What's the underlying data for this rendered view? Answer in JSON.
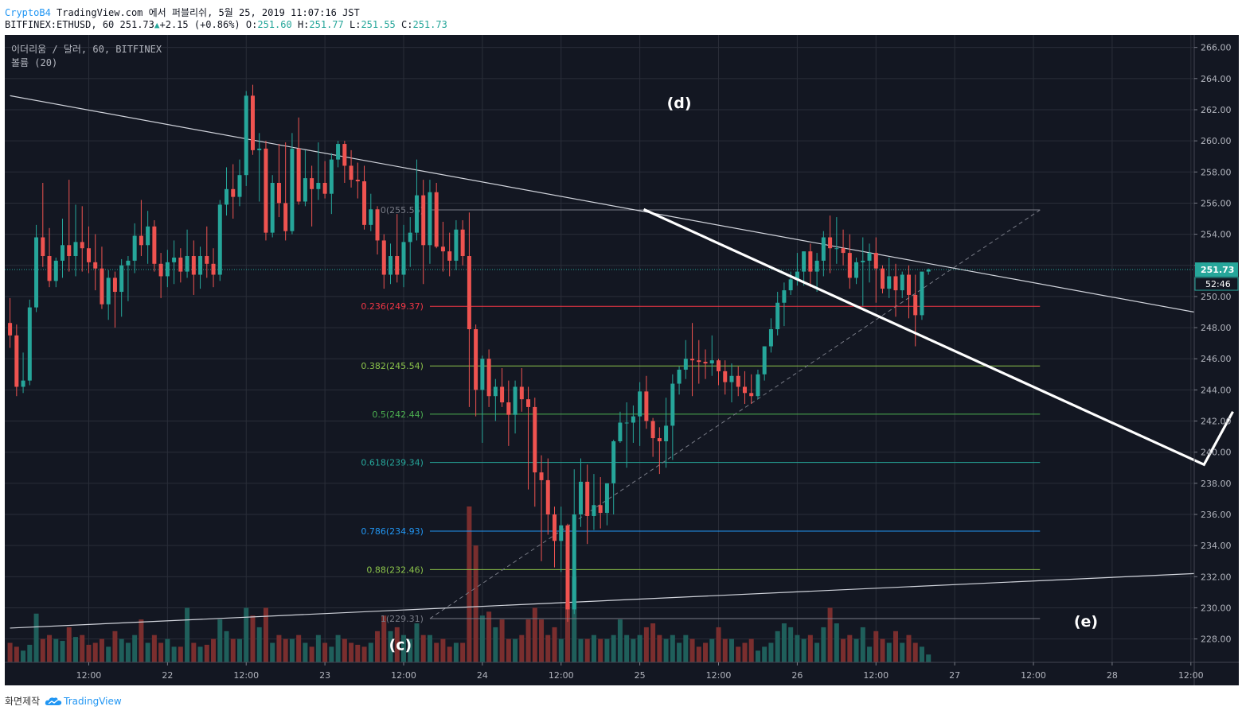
{
  "header": {
    "brand": "CryptoB4",
    "published": "TradingView.com 에서 퍼블리쉬, 5월 25, 2019 11:07:16 JST",
    "symbol": "BITFINEX:ETHUSD, 60",
    "last": "251.73",
    "change": "+2.15 (+0.86%)",
    "o_label": "O:",
    "o": "251.60",
    "h_label": "H:",
    "h": "251.77",
    "l_label": "L:",
    "l": "251.55",
    "c_label": "C:",
    "c": "251.73"
  },
  "legend": {
    "line1": "이더리움 / 달러, 60, BITFINEX",
    "line2": "볼륨 (20)"
  },
  "footer": {
    "made_with": "화면제작",
    "tv": "TradingView"
  },
  "colors": {
    "background": "#131722",
    "grid": "#2a2e39",
    "up": "#26a69a",
    "down": "#ef5350",
    "vol_up": "#1f5f5b",
    "vol_down": "#7a2e2e",
    "price_line": "#26a69a"
  },
  "chart_data": {
    "type": "candlestick",
    "yaxis_range": [
      226.5,
      266.8
    ],
    "y_ticks": [
      "228.00",
      "230.00",
      "232.00",
      "234.00",
      "236.00",
      "238.00",
      "240.00",
      "242.00",
      "244.00",
      "246.00",
      "248.00",
      "250.00",
      "252.00",
      "254.00",
      "256.00",
      "258.00",
      "260.00",
      "262.00",
      "264.00",
      "266.00"
    ],
    "x_ticks": [
      {
        "label": "12:00",
        "t": -12
      },
      {
        "label": "22",
        "t": 0
      },
      {
        "label": "12:00",
        "t": 12
      },
      {
        "label": "23",
        "t": 24
      },
      {
        "label": "12:00",
        "t": 36
      },
      {
        "label": "24",
        "t": 48
      },
      {
        "label": "12:00",
        "t": 60
      },
      {
        "label": "25",
        "t": 72
      },
      {
        "label": "12:00",
        "t": 84
      },
      {
        "label": "26",
        "t": 96
      },
      {
        "label": "12:00",
        "t": 108
      },
      {
        "label": "27",
        "t": 120
      },
      {
        "label": "12:00",
        "t": 132
      },
      {
        "label": "28",
        "t": 144
      },
      {
        "label": "12:00",
        "t": 156
      }
    ],
    "time_unit": "hours from May 22 00:00",
    "current_price": "251.73",
    "countdown": "52:46",
    "fib_levels": [
      {
        "label": "0(255.56)",
        "price": 255.56,
        "color": "#787b86"
      },
      {
        "label": "0.236(249.37)",
        "price": 249.37,
        "color": "#f23645"
      },
      {
        "label": "0.382(245.54)",
        "price": 245.54,
        "color": "#8bc34a"
      },
      {
        "label": "0.5(242.44)",
        "price": 242.44,
        "color": "#4caf50"
      },
      {
        "label": "0.618(239.34)",
        "price": 239.34,
        "color": "#26a69a"
      },
      {
        "label": "0.786(234.93)",
        "price": 234.93,
        "color": "#2196f3"
      },
      {
        "label": "0.88(232.46)",
        "price": 232.46,
        "color": "#8bc34a"
      },
      {
        "label": "1(229.31)",
        "price": 229.31,
        "color": "#787b86"
      }
    ],
    "fib_range_t": [
      40,
      133
    ],
    "fib_diagonal": [
      {
        "t": 40,
        "p": 229.31
      },
      {
        "t": 133,
        "p": 255.56
      }
    ],
    "upper_trendline": [
      {
        "t": -24,
        "p": 262.9
      },
      {
        "t": 162,
        "p": 249.0
      }
    ],
    "lower_trendline": [
      {
        "t": -24,
        "p": 228.7
      },
      {
        "t": 162,
        "p": 232.2
      }
    ],
    "projection": [
      {
        "t": 72.6,
        "p": 255.6
      },
      {
        "t": 158,
        "p": 239.2
      },
      {
        "t": 162.4,
        "p": 242.6
      }
    ],
    "wave_labels": [
      {
        "text": "(d)",
        "t": 78,
        "p": 262.1
      },
      {
        "text": "(c)",
        "t": 35.5,
        "p": 227.3
      },
      {
        "text": "(e)",
        "t": 140,
        "p": 228.8
      }
    ],
    "candles": [
      [
        -24,
        248.3,
        249.9,
        246.7,
        247.5,
        10
      ],
      [
        -23,
        247.5,
        248.2,
        243.6,
        244.2,
        8
      ],
      [
        -22,
        244.2,
        246.4,
        243.8,
        244.6,
        6
      ],
      [
        -21,
        244.6,
        249.8,
        244.3,
        249.3,
        9
      ],
      [
        -20,
        249.3,
        254.6,
        249.0,
        253.8,
        25
      ],
      [
        -19,
        253.8,
        257.3,
        251.9,
        252.6,
        12
      ],
      [
        -18,
        252.6,
        254.4,
        250.6,
        251.0,
        14
      ],
      [
        -17,
        251.0,
        252.5,
        250.6,
        252.3,
        12
      ],
      [
        -16,
        252.3,
        255.0,
        251.2,
        253.3,
        11
      ],
      [
        -15,
        253.3,
        257.5,
        251.6,
        252.6,
        18
      ],
      [
        -14,
        252.6,
        255.9,
        251.3,
        253.5,
        13
      ],
      [
        -13,
        253.5,
        255.8,
        251.6,
        253.1,
        14
      ],
      [
        -12,
        253.1,
        254.5,
        251.5,
        252.2,
        9
      ],
      [
        -11,
        252.2,
        254.0,
        250.4,
        251.8,
        10
      ],
      [
        -10,
        251.8,
        253.2,
        249.2,
        249.5,
        12
      ],
      [
        -9,
        249.5,
        251.7,
        248.5,
        251.2,
        8
      ],
      [
        -8,
        251.2,
        251.6,
        248.0,
        250.3,
        16
      ],
      [
        -7,
        250.3,
        252.4,
        248.7,
        252.0,
        12
      ],
      [
        -6,
        252.0,
        252.6,
        249.7,
        252.3,
        10
      ],
      [
        -5,
        252.3,
        254.7,
        251.5,
        253.9,
        14
      ],
      [
        -4,
        253.9,
        256.2,
        252.6,
        253.3,
        22
      ],
      [
        -3,
        253.3,
        255.5,
        252.1,
        254.5,
        10
      ],
      [
        -2,
        254.5,
        254.9,
        251.6,
        252.1,
        14
      ],
      [
        -1,
        252.1,
        252.8,
        249.9,
        251.3,
        10
      ],
      [
        0,
        251.3,
        253.0,
        250.6,
        252.2,
        12
      ],
      [
        1,
        252.2,
        253.6,
        250.8,
        252.5,
        8
      ],
      [
        2,
        252.5,
        253.1,
        250.9,
        251.6,
        8
      ],
      [
        3,
        251.6,
        254.3,
        251.2,
        252.6,
        28
      ],
      [
        4,
        252.6,
        253.6,
        250.1,
        251.4,
        10
      ],
      [
        5,
        251.4,
        253.2,
        250.5,
        252.6,
        8
      ],
      [
        6,
        252.6,
        254.5,
        251.2,
        252.1,
        9
      ],
      [
        7,
        252.1,
        253.1,
        250.6,
        251.4,
        12
      ],
      [
        8,
        251.4,
        256.2,
        251.0,
        255.9,
        22
      ],
      [
        9,
        255.9,
        258.3,
        255.2,
        256.9,
        16
      ],
      [
        10,
        256.9,
        258.5,
        255.0,
        256.4,
        12
      ],
      [
        11,
        256.4,
        258.8,
        255.8,
        257.8,
        12
      ],
      [
        12,
        257.8,
        263.2,
        257.1,
        262.9,
        28
      ],
      [
        13,
        262.9,
        263.6,
        259.1,
        259.4,
        24
      ],
      [
        14,
        259.4,
        260.5,
        256.1,
        259.5,
        18
      ],
      [
        15,
        259.5,
        260.0,
        253.6,
        254.1,
        28
      ],
      [
        16,
        254.1,
        257.8,
        253.8,
        257.3,
        10
      ],
      [
        17,
        257.3,
        259.8,
        255.1,
        256.0,
        14
      ],
      [
        18,
        256.0,
        259.9,
        253.6,
        254.2,
        12
      ],
      [
        19,
        254.2,
        260.5,
        254.0,
        259.5,
        12
      ],
      [
        20,
        259.5,
        261.5,
        255.9,
        256.1,
        14
      ],
      [
        21,
        256.1,
        259.4,
        255.8,
        257.6,
        10
      ],
      [
        22,
        257.6,
        258.4,
        254.5,
        256.9,
        8
      ],
      [
        23,
        256.9,
        259.9,
        256.2,
        257.3,
        14
      ],
      [
        24,
        257.3,
        258.7,
        256.3,
        256.6,
        10
      ],
      [
        25,
        256.6,
        259.2,
        255.3,
        258.8,
        8
      ],
      [
        26,
        258.8,
        260.0,
        258.3,
        259.8,
        14
      ],
      [
        27,
        259.8,
        260.0,
        257.3,
        258.4,
        12
      ],
      [
        28,
        258.4,
        259.4,
        257.0,
        257.5,
        10
      ],
      [
        29,
        257.5,
        258.6,
        256.3,
        257.4,
        9
      ],
      [
        30,
        257.4,
        258.4,
        254.3,
        254.6,
        8
      ],
      [
        31,
        254.6,
        256.6,
        254.2,
        255.6,
        10
      ],
      [
        32,
        255.6,
        255.8,
        252.7,
        253.6,
        16
      ],
      [
        33,
        253.6,
        254.0,
        250.5,
        251.4,
        24
      ],
      [
        34,
        251.4,
        253.4,
        250.8,
        252.6,
        16
      ],
      [
        35,
        252.6,
        255.3,
        250.9,
        251.4,
        18
      ],
      [
        36,
        251.4,
        254.6,
        250.6,
        253.5,
        14
      ],
      [
        37,
        253.5,
        255.1,
        251.9,
        254.1,
        12
      ],
      [
        38,
        254.1,
        258.8,
        253.6,
        256.5,
        20
      ],
      [
        39,
        256.5,
        257.5,
        250.8,
        253.3,
        14
      ],
      [
        40,
        253.3,
        257.5,
        252.1,
        256.7,
        14
      ],
      [
        41,
        256.7,
        257.3,
        253.1,
        253.2,
        10
      ],
      [
        42,
        253.2,
        254.8,
        251.6,
        252.9,
        12
      ],
      [
        43,
        252.9,
        254.1,
        251.3,
        252.3,
        8
      ],
      [
        44,
        252.3,
        254.9,
        251.7,
        254.3,
        10
      ],
      [
        45,
        254.3,
        254.9,
        252.0,
        252.6,
        10
      ],
      [
        46,
        252.6,
        255.4,
        242.9,
        247.9,
        80
      ],
      [
        47,
        247.9,
        248.2,
        242.3,
        244.0,
        60
      ],
      [
        48,
        244.0,
        246.2,
        240.6,
        246.0,
        24
      ],
      [
        49,
        246.0,
        246.6,
        242.9,
        243.6,
        26
      ],
      [
        50,
        243.6,
        244.7,
        242.0,
        244.2,
        18
      ],
      [
        51,
        244.2,
        245.4,
        242.9,
        243.2,
        22
      ],
      [
        52,
        243.2,
        244.6,
        240.4,
        242.4,
        12
      ],
      [
        53,
        242.4,
        244.6,
        241.2,
        244.2,
        12
      ],
      [
        54,
        244.2,
        245.4,
        242.6,
        243.4,
        14
      ],
      [
        55,
        243.4,
        244.2,
        237.6,
        242.9,
        22
      ],
      [
        56,
        242.9,
        243.5,
        236.5,
        238.7,
        28
      ],
      [
        57,
        238.7,
        239.8,
        233.0,
        238.2,
        22
      ],
      [
        58,
        238.2,
        239.6,
        234.7,
        236.0,
        14
      ],
      [
        59,
        236.0,
        236.5,
        232.6,
        234.3,
        18
      ],
      [
        60,
        234.3,
        236.5,
        232.3,
        235.3,
        12
      ],
      [
        61,
        235.3,
        235.4,
        229.1,
        229.9,
        30
      ],
      [
        62,
        229.9,
        238.9,
        229.6,
        236.0,
        44
      ],
      [
        63,
        236.0,
        239.6,
        235.2,
        238.1,
        12
      ],
      [
        64,
        238.1,
        239.2,
        234.1,
        235.9,
        12
      ],
      [
        65,
        235.9,
        238.6,
        235.0,
        236.6,
        14
      ],
      [
        66,
        236.6,
        238.4,
        235.1,
        236.1,
        12
      ],
      [
        67,
        236.1,
        238.0,
        235.3,
        238.0,
        12
      ],
      [
        68,
        238.0,
        240.8,
        236.0,
        240.7,
        14
      ],
      [
        69,
        240.7,
        242.6,
        240.6,
        241.9,
        22
      ],
      [
        70,
        241.9,
        243.2,
        239.0,
        241.9,
        14
      ],
      [
        71,
        241.9,
        243.0,
        240.6,
        242.3,
        12
      ],
      [
        72,
        242.3,
        244.5,
        240.4,
        243.9,
        14
      ],
      [
        73,
        243.9,
        244.9,
        241.5,
        242.0,
        18
      ],
      [
        74,
        242.0,
        242.2,
        239.7,
        240.9,
        20
      ],
      [
        75,
        240.9,
        241.6,
        238.6,
        240.7,
        14
      ],
      [
        76,
        240.7,
        243.5,
        239.0,
        241.7,
        12
      ],
      [
        77,
        241.7,
        245.0,
        239.5,
        244.4,
        14
      ],
      [
        78,
        244.4,
        245.5,
        243.7,
        245.3,
        10
      ],
      [
        79,
        245.3,
        247.2,
        244.7,
        246.0,
        14
      ],
      [
        80,
        246.0,
        248.3,
        243.6,
        245.9,
        12
      ],
      [
        81,
        245.9,
        247.2,
        244.4,
        245.8,
        8
      ],
      [
        82,
        245.8,
        246.6,
        244.7,
        245.7,
        10
      ],
      [
        83,
        245.7,
        247.5,
        244.9,
        245.9,
        12
      ],
      [
        84,
        245.9,
        246.0,
        244.3,
        245.2,
        18
      ],
      [
        85,
        245.2,
        245.9,
        243.7,
        244.5,
        12
      ],
      [
        86,
        244.5,
        245.7,
        243.2,
        244.9,
        12
      ],
      [
        87,
        244.9,
        245.5,
        243.6,
        244.2,
        8
      ],
      [
        88,
        244.2,
        245.2,
        243.1,
        243.8,
        10
      ],
      [
        89,
        243.8,
        245.0,
        243.1,
        243.6,
        12
      ],
      [
        90,
        243.6,
        245.3,
        243.4,
        245.0,
        6
      ],
      [
        91,
        245.0,
        246.8,
        244.6,
        246.8,
        8
      ],
      [
        92,
        246.8,
        248.6,
        246.4,
        247.9,
        10
      ],
      [
        93,
        247.9,
        250.3,
        247.5,
        249.6,
        16
      ],
      [
        94,
        249.6,
        250.9,
        248.1,
        250.4,
        20
      ],
      [
        95,
        250.4,
        251.6,
        250.1,
        251.1,
        18
      ],
      [
        96,
        251.1,
        252.8,
        250.7,
        251.6,
        14
      ],
      [
        97,
        251.6,
        252.9,
        250.7,
        252.9,
        12
      ],
      [
        98,
        252.9,
        253.4,
        250.6,
        251.6,
        14
      ],
      [
        99,
        251.6,
        252.8,
        250.3,
        252.3,
        10
      ],
      [
        100,
        252.3,
        254.2,
        251.3,
        253.8,
        18
      ],
      [
        101,
        253.8,
        255.2,
        251.5,
        253.1,
        28
      ],
      [
        102,
        253.1,
        255.1,
        252.1,
        253.1,
        20
      ],
      [
        103,
        253.1,
        254.3,
        252.0,
        252.8,
        12
      ],
      [
        104,
        252.8,
        254.0,
        250.5,
        251.2,
        14
      ],
      [
        105,
        251.2,
        252.5,
        250.8,
        252.2,
        12
      ],
      [
        106,
        252.2,
        253.8,
        249.4,
        252.3,
        18
      ],
      [
        107,
        252.3,
        253.4,
        250.9,
        252.8,
        8
      ],
      [
        108,
        252.8,
        253.8,
        249.6,
        251.8,
        16
      ],
      [
        109,
        251.8,
        252.0,
        250.2,
        250.5,
        12
      ],
      [
        110,
        250.5,
        252.5,
        249.9,
        251.3,
        10
      ],
      [
        111,
        251.3,
        252.1,
        248.7,
        250.4,
        16
      ],
      [
        112,
        250.4,
        251.6,
        249.9,
        251.4,
        10
      ],
      [
        113,
        251.4,
        252.0,
        248.6,
        250.1,
        14
      ],
      [
        114,
        250.1,
        251.4,
        246.8,
        248.8,
        10
      ],
      [
        115,
        248.8,
        251.2,
        248.5,
        251.6,
        8
      ],
      [
        116,
        251.6,
        251.8,
        251.4,
        251.73,
        4
      ]
    ]
  }
}
